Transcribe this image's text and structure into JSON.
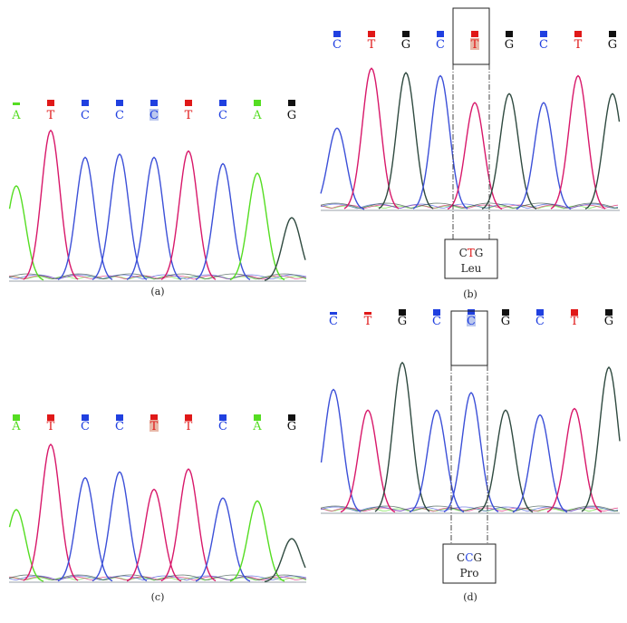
{
  "colors": {
    "A": "#55dd22",
    "T": "#e01818",
    "C": "#2040e0",
    "G": "#111111",
    "trace_A": "#55dd22",
    "trace_T": "#d8186a",
    "trace_C": "#3c50d8",
    "trace_G": "#2f4a40",
    "highlight": "#bcc8ee",
    "highlight_T": "#e8b8a8"
  },
  "panels": [
    {
      "id": "a",
      "label": "(a)",
      "bases": [
        "A",
        "T",
        "C",
        "C",
        "C",
        "T",
        "C",
        "A",
        "G"
      ],
      "highlight_index": 4,
      "peaks": [
        0.6,
        0.95,
        0.78,
        0.8,
        0.78,
        0.82,
        0.74,
        0.68,
        0.4
      ],
      "boxed": false
    },
    {
      "id": "b",
      "label": "(b)",
      "bases": [
        "C",
        "T",
        "G",
        "C",
        "T",
        "G",
        "C",
        "T",
        "G"
      ],
      "highlight_index": 4,
      "peaks": [
        0.55,
        0.95,
        0.92,
        0.9,
        0.72,
        0.78,
        0.72,
        0.9,
        0.78
      ],
      "boxed": true,
      "codon": {
        "letters": [
          "C",
          "T",
          "G"
        ],
        "mutant_index": 1,
        "amino_acid": "Leu"
      }
    },
    {
      "id": "c",
      "label": "(c)",
      "bases": [
        "A",
        "T",
        "C",
        "C",
        "T",
        "T",
        "C",
        "A",
        "G"
      ],
      "highlight_index": 4,
      "peaks": [
        0.5,
        0.95,
        0.72,
        0.76,
        0.64,
        0.78,
        0.58,
        0.56,
        0.3
      ],
      "boxed": false
    },
    {
      "id": "d",
      "label": "(d)",
      "bases": [
        "C",
        "T",
        "G",
        "C",
        "C",
        "G",
        "C",
        "T",
        "G"
      ],
      "highlight_index": 4,
      "peaks": [
        0.78,
        0.65,
        0.95,
        0.65,
        0.76,
        0.65,
        0.62,
        0.66,
        0.92
      ],
      "boxed": true,
      "codon": {
        "letters": [
          "C",
          "C",
          "G"
        ],
        "mutant_index": 1,
        "amino_acid": "Pro"
      }
    }
  ]
}
